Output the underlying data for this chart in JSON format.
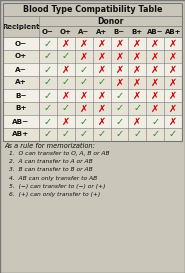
{
  "title": "Blood Type Compatibility Table",
  "donor_label": "Donor",
  "recipient_label": "Recipient",
  "donor_types": [
    "O−",
    "O+",
    "A−",
    "A+",
    "B−",
    "B+",
    "AB−",
    "AB+"
  ],
  "recipient_types": [
    "O−",
    "O+",
    "A−",
    "A+",
    "B−",
    "B+",
    "AB−",
    "AB+"
  ],
  "compatibility": [
    [
      1,
      0,
      0,
      0,
      0,
      0,
      0,
      0
    ],
    [
      1,
      1,
      0,
      0,
      0,
      0,
      0,
      0
    ],
    [
      1,
      0,
      1,
      0,
      0,
      0,
      0,
      0
    ],
    [
      1,
      1,
      1,
      1,
      0,
      0,
      0,
      0
    ],
    [
      1,
      0,
      0,
      0,
      1,
      0,
      0,
      0
    ],
    [
      1,
      1,
      0,
      0,
      1,
      1,
      0,
      0
    ],
    [
      1,
      0,
      1,
      0,
      1,
      0,
      1,
      0
    ],
    [
      1,
      1,
      1,
      1,
      1,
      1,
      1,
      1
    ]
  ],
  "check_color": "#2a8a2a",
  "cross_color": "#cc0000",
  "bg_color": "#cac6ba",
  "row_colors": [
    "#f2efe6",
    "#e6e2d6"
  ],
  "header_row_color": "#dedad0",
  "border_color": "#777777",
  "title_color": "#111111",
  "memo_lines": [
    "1.  O can transfer to O, A, B or AB",
    "2.  A can transfer to A or AB",
    "3.  B can transfer to B or AB",
    "4.  AB can only transfer to AB",
    "5.  (−) can transfer to (−) or (+)",
    "6.  (+) can only transfer to (+)"
  ],
  "memo_header": "As a rule for memorization:"
}
